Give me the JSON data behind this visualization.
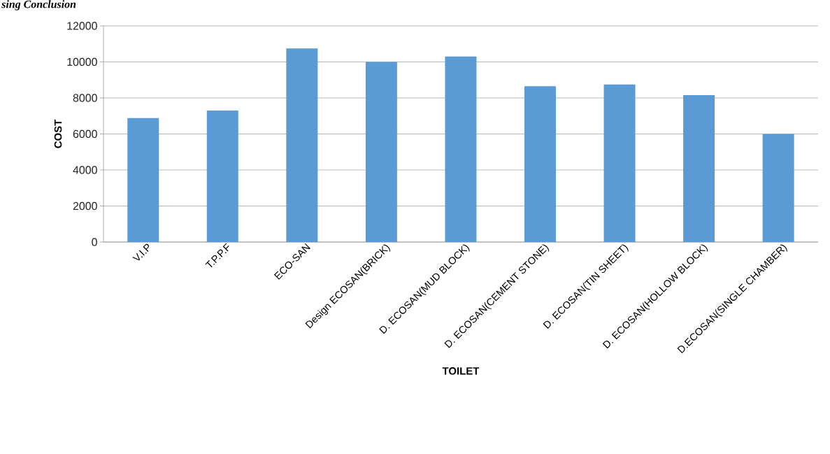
{
  "chart_data": {
    "type": "bar",
    "categories": [
      "V.I.P",
      "T.P.P.F",
      "ECO-SAN",
      "Design ECOSAN(BRICK)",
      "D. ECOSAN(MUD BLOCK)",
      "D. ECOSAN(CEMENT STONE)",
      "D. ECOSAN(TIN SHEET)",
      "D. ECOSAN(HOLLOW BLOCK)",
      "D.ECOSAN(SINGLE CHAMBER)"
    ],
    "values": [
      6880,
      7300,
      10750,
      10000,
      10300,
      8650,
      8750,
      8150,
      6000
    ],
    "color": "#5b9bd5",
    "xlabel": "TOILET",
    "ylabel": "COST",
    "ylim": [
      0,
      12000
    ],
    "yticks": [
      0,
      2000,
      4000,
      6000,
      8000,
      10000,
      12000
    ],
    "grid": "y",
    "annotations": [
      "sing Conclusion"
    ]
  }
}
